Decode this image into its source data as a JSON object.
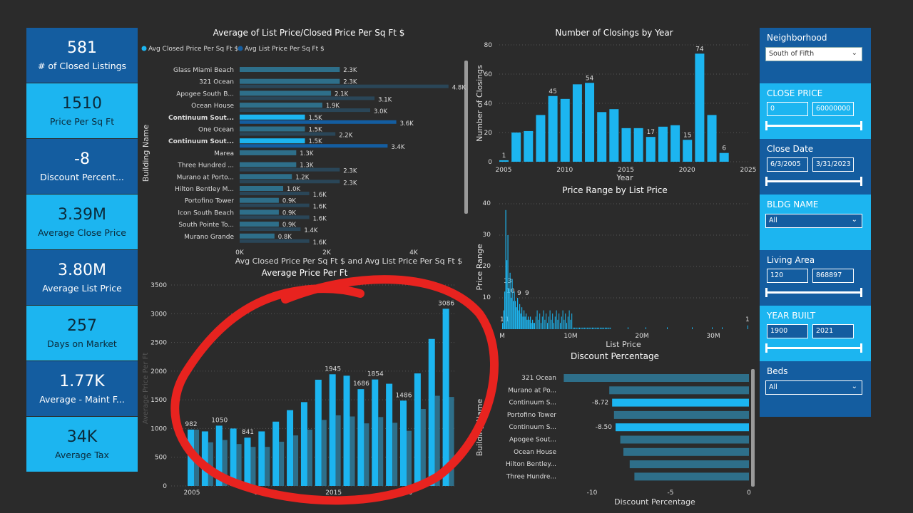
{
  "kpis": [
    {
      "value": "581",
      "label": "# of Closed Listings",
      "bg": "#145da0"
    },
    {
      "value": "1510",
      "label": "Price Per Sq Ft",
      "bg": "#1cb5f0"
    },
    {
      "value": "-8",
      "label": "Discount Percent...",
      "bg": "#145da0"
    },
    {
      "value": "3.39M",
      "label": "Average Close Price",
      "bg": "#1cb5f0"
    },
    {
      "value": "3.80M",
      "label": "Average List Price",
      "bg": "#145da0"
    },
    {
      "value": "257",
      "label": "Days on Market",
      "bg": "#1cb5f0"
    },
    {
      "value": "1.77K",
      "label": "Average - Maint F...",
      "bg": "#145da0"
    },
    {
      "value": "34K",
      "label": "Average Tax",
      "bg": "#1cb5f0"
    }
  ],
  "filters": {
    "neighborhood": {
      "label": "Neighborhood",
      "value": "South of Fifth"
    },
    "close_price": {
      "label": "CLOSE PRICE",
      "min": "0",
      "max": "60000000"
    },
    "close_date": {
      "label": "Close Date",
      "min": "6/3/2005",
      "max": "3/31/2023"
    },
    "bldg_name": {
      "label": "BLDG NAME",
      "value": "All"
    },
    "living_area": {
      "label": "Living Area",
      "min": "120",
      "max": "868897"
    },
    "year_built": {
      "label": "YEAR BUILT",
      "min": "1900",
      "max": "2021"
    },
    "beds": {
      "label": "Beds",
      "value": "All"
    }
  },
  "colors": {
    "light": "#1cb5f0",
    "dark": "#145da0",
    "muted": "#2e6f8a",
    "annotation": "#e8231f"
  },
  "chart_data": [
    {
      "id": "bldg",
      "type": "bar",
      "orientation": "horizontal",
      "title": "Average of List Price/Closed Price Per Sq Ft $",
      "legend": [
        "Avg Closed Price Per Sq Ft $",
        "Avg List Price Per Sq Ft $"
      ],
      "xlabel": "Avg Closed Price Per Sq Ft $ and Avg List Price Per Sq Ft $",
      "ylabel": "Building Name",
      "xticks": [
        "0K",
        "2K",
        "4K"
      ],
      "xlim": [
        0,
        5000
      ],
      "categories": [
        "Glass Miami Beach",
        "321 Ocean",
        "Apogee South B...",
        "Ocean House",
        "Continuum Sout...",
        "One Ocean",
        "Continuum Sout...",
        "Marea",
        "Three Hundred ...",
        "Murano at Porto...",
        "Hilton Bentley M...",
        "Portofino Tower",
        "Icon South Beach",
        "South Pointe To...",
        "Murano Grande"
      ],
      "highlight": [
        false,
        false,
        false,
        false,
        true,
        false,
        true,
        false,
        false,
        false,
        false,
        false,
        false,
        false,
        false
      ],
      "closed": [
        2300,
        2300,
        2100,
        1900,
        1500,
        1500,
        1500,
        1300,
        1300,
        1200,
        1000,
        900,
        900,
        900,
        800
      ],
      "closed_labels": [
        "2.3K",
        "2.3K",
        "2.1K",
        "1.9K",
        "1.5K",
        "1.5K",
        "1.5K",
        "1.3K",
        "1.3K",
        "1.2K",
        "1.0K",
        "0.9K",
        "0.9K",
        "0.9K",
        "0.8K"
      ],
      "list": [
        null,
        4800,
        3100,
        3000,
        3600,
        2200,
        3400,
        null,
        2300,
        2300,
        1600,
        1600,
        1600,
        1400,
        1600
      ],
      "list_labels": [
        "",
        "4.8K",
        "3.1K",
        "3.0K",
        "3.6K",
        "2.2K",
        "3.4K",
        "",
        "2.3K",
        "2.3K",
        "1.6K",
        "1.6K",
        "1.6K",
        "1.4K",
        "1.6K"
      ]
    },
    {
      "id": "closings",
      "type": "bar",
      "title": "Number of Closings by Year",
      "xlabel": "Year",
      "ylabel": "Number of Closings",
      "xlim": [
        2005,
        2025
      ],
      "ylim": [
        0,
        80
      ],
      "xticks": [
        "2005",
        "2010",
        "2015",
        "2020",
        "2025"
      ],
      "yticks": [
        "0",
        "20",
        "40",
        "60",
        "80"
      ],
      "x": [
        2005,
        2006,
        2007,
        2008,
        2009,
        2010,
        2011,
        2012,
        2013,
        2014,
        2015,
        2016,
        2017,
        2018,
        2019,
        2020,
        2021,
        2022,
        2023
      ],
      "values": [
        1,
        20,
        21,
        32,
        45,
        43,
        53,
        54,
        34,
        36,
        23,
        23,
        17,
        24,
        25,
        15,
        74,
        32,
        6
      ],
      "labeled": {
        "2005": "1",
        "2009": "45",
        "2012": "54",
        "2017": "17",
        "2020": "15",
        "2021": "74",
        "2023": "6"
      }
    },
    {
      "id": "pricerange",
      "type": "bar",
      "title": "Price Range by List Price",
      "xlabel": "List Price",
      "ylabel": "Price Range",
      "ylim": [
        0,
        40
      ],
      "xlim": [
        0,
        35000000
      ],
      "xticks": [
        "M",
        "10M",
        "20M",
        "30M"
      ],
      "yticks": [
        "10",
        "20",
        "30",
        "40"
      ],
      "annotations": [
        "13",
        "10",
        "9",
        "9",
        "1",
        "1",
        "1"
      ]
    },
    {
      "id": "discount",
      "type": "bar",
      "orientation": "horizontal",
      "title": "Discount Percentage",
      "xlabel": "Discount Percentage",
      "ylabel": "Building Name",
      "xlim": [
        -11.5,
        0
      ],
      "xticks": [
        "-10",
        "-5",
        "0"
      ],
      "categories": [
        "321 Ocean",
        "Murano at Po...",
        "Continuum S...",
        "Portofino Tower",
        "Continuum S...",
        "Apogee Sout...",
        "Ocean House",
        "Hilton Bentley...",
        "Three Hundre..."
      ],
      "values": [
        -11.8,
        -8.9,
        -8.72,
        -8.6,
        -8.5,
        -8.2,
        -8.0,
        -7.6,
        -7.3
      ],
      "highlight": [
        false,
        false,
        true,
        false,
        true,
        false,
        false,
        false,
        false
      ],
      "labels": [
        "",
        "",
        "-8.72",
        "",
        "-8.50",
        "",
        "",
        "",
        ""
      ]
    },
    {
      "id": "avgprice",
      "type": "bar",
      "title": "Average Price Per Ft",
      "ylabel": "Average Price Per Ft",
      "ylim": [
        0,
        3500
      ],
      "xticks": [
        "2005",
        "2010",
        "2015",
        "2020"
      ],
      "yticks": [
        "0",
        "500",
        "1000",
        "1500",
        "2000",
        "2500",
        "3000",
        "3500"
      ],
      "x": [
        2005,
        2006,
        2007,
        2008,
        2009,
        2010,
        2011,
        2012,
        2013,
        2014,
        2015,
        2016,
        2017,
        2018,
        2019,
        2020,
        2021,
        2022,
        2023
      ],
      "series": [
        {
          "values": [
            982,
            950,
            1050,
            1000,
            841,
            950,
            1120,
            1320,
            1460,
            1850,
            1945,
            1920,
            1686,
            1854,
            1780,
            1486,
            1960,
            2560,
            3086
          ]
        },
        {
          "values": [
            980,
            760,
            800,
            730,
            680,
            680,
            770,
            880,
            980,
            1150,
            1230,
            1210,
            1090,
            1200,
            1100,
            960,
            1340,
            1570,
            1550
          ]
        }
      ],
      "labeled": {
        "2005": "982",
        "2007": "1050",
        "2009": "841",
        "2015": "1945",
        "2017": "1686",
        "2018": "1854",
        "2020": "1486",
        "2023": "3086"
      }
    }
  ]
}
